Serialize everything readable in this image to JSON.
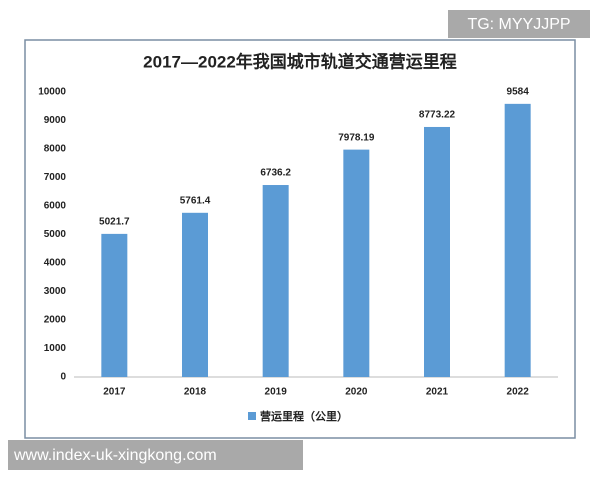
{
  "chart_data": {
    "type": "bar",
    "title": "2017—2022年我国城市轨道交通营运里程",
    "categories": [
      "2017",
      "2018",
      "2019",
      "2020",
      "2021",
      "2022"
    ],
    "series": [
      {
        "name": "营运里程（公里）",
        "color": "#5b9bd5",
        "values": [
          5021.7,
          5761.4,
          6736.2,
          7978.19,
          8773.22,
          9584
        ]
      }
    ],
    "ylim": [
      0,
      10000
    ],
    "yticks": [
      0,
      1000,
      2000,
      3000,
      4000,
      5000,
      6000,
      7000,
      8000,
      9000,
      10000
    ],
    "grid": false,
    "data_labels": true,
    "legend": "bottom"
  },
  "overlay": {
    "top_right": "TG: MYYJJPP",
    "bottom_left": "www.index-uk-xingkong.com"
  }
}
